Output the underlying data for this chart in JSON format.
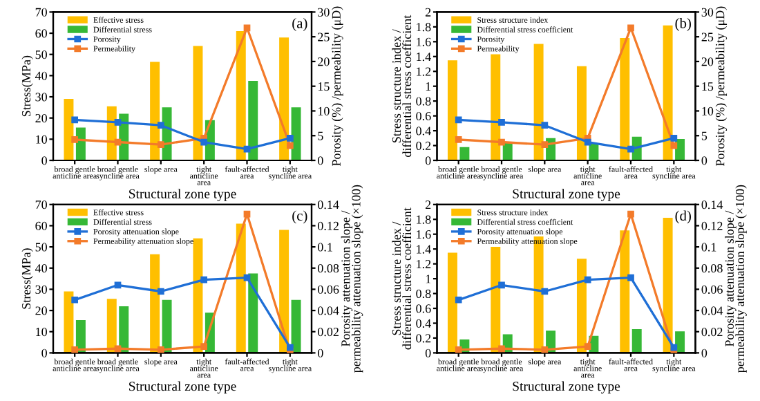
{
  "chart_data": [
    {
      "type": "bar",
      "categories": [
        "broad gentle\nanticline area",
        "broad gentle\nsyncline area",
        "slope area",
        "tight\nanticline\narea",
        "fault-affected\narea",
        "tight\nsyncline area"
      ],
      "xlabel": "Structural zone type",
      "ylabel": "Stress(MPa)",
      "y2label": "Porosity (%) /permeability (μD)",
      "annotations": [
        "(a)"
      ],
      "legend": "top left",
      "marker": "square",
      "ylim": [
        0,
        70
      ],
      "yticks": [
        0,
        10,
        20,
        30,
        40,
        50,
        60,
        70
      ],
      "y2lim": [
        0,
        30
      ],
      "y2ticks": [
        0,
        5,
        10,
        15,
        20,
        25,
        30
      ],
      "series": [
        {
          "name": "Effective stress",
          "color": "#ffbf00",
          "values": [
            29,
            25.5,
            46.5,
            54,
            61,
            58
          ]
        },
        {
          "name": "Differential stress",
          "color": "#36b836",
          "values": [
            15.5,
            22,
            25,
            19,
            37.5,
            25
          ]
        },
        {
          "name": "Porosity",
          "type": "line",
          "axis": "y2",
          "color": "#1f6fd6",
          "values": [
            8.2,
            7.7,
            7.1,
            3.7,
            2.3,
            4.5
          ]
        },
        {
          "name": "Permeability",
          "type": "line",
          "axis": "y2",
          "color": "#f37b2a",
          "values": [
            4.2,
            3.7,
            3.2,
            4.5,
            26.8,
            3.0
          ]
        }
      ]
    },
    {
      "type": "bar",
      "categories": [
        "broad gentle\nanticline area",
        "broad gentle\nsyncline area",
        "slope area",
        "tight\nanticline\narea",
        "fault-affected\narea",
        "tight\nsyncline area"
      ],
      "xlabel": "Structural zone type",
      "ylabel": "Stress structure index /\ndifferential stress coefficient",
      "y2label": "Porosity (%) /permeability (μD)",
      "annotations": [
        "(b)"
      ],
      "legend": "top left",
      "marker": "square",
      "ylim": [
        0,
        2
      ],
      "yticks": [
        0,
        0.2,
        0.4,
        0.6,
        0.8,
        1,
        1.2,
        1.4,
        1.6,
        1.8,
        2
      ],
      "y2lim": [
        0,
        30
      ],
      "y2ticks": [
        0,
        5,
        10,
        15,
        20,
        25,
        30
      ],
      "series": [
        {
          "name": "Stress structure index",
          "color": "#ffbf00",
          "values": [
            1.35,
            1.43,
            1.57,
            1.27,
            1.65,
            1.82
          ]
        },
        {
          "name": "Differential stress coefficient",
          "color": "#36b836",
          "values": [
            0.18,
            0.25,
            0.3,
            0.23,
            0.32,
            0.29
          ]
        },
        {
          "name": "Porosity",
          "type": "line",
          "axis": "y2",
          "color": "#1f6fd6",
          "values": [
            8.2,
            7.7,
            7.1,
            3.7,
            2.3,
            4.5
          ]
        },
        {
          "name": "Permeability",
          "type": "line",
          "axis": "y2",
          "color": "#f37b2a",
          "values": [
            4.2,
            3.7,
            3.2,
            4.5,
            26.8,
            3.0
          ]
        }
      ]
    },
    {
      "type": "bar",
      "categories": [
        "broad gentle\nanticline area",
        "broad gentle\nsyncline area",
        "slope area",
        "tight\nanticline\narea",
        "fault-affected\narea",
        "tight\nsyncline area"
      ],
      "xlabel": "Structural zone type",
      "ylabel": "Stress(MPa)",
      "y2label": "Porosity attenuation slope /\npermeability attenuation slope (×100)",
      "annotations": [
        "(c)"
      ],
      "legend": "top left",
      "marker": "square",
      "ylim": [
        0,
        70
      ],
      "yticks": [
        0,
        10,
        20,
        30,
        40,
        50,
        60,
        70
      ],
      "y2lim": [
        0,
        0.14
      ],
      "y2ticks": [
        0,
        0.02,
        0.04,
        0.06,
        0.08,
        0.1,
        0.12,
        0.14
      ],
      "series": [
        {
          "name": "Effective stress",
          "color": "#ffbf00",
          "values": [
            29,
            25.5,
            46.5,
            54,
            61,
            58
          ]
        },
        {
          "name": "Differential stress",
          "color": "#36b836",
          "values": [
            15.5,
            22,
            25,
            19,
            37.5,
            25
          ]
        },
        {
          "name": "Porosity attenuation slope",
          "type": "line",
          "axis": "y2",
          "color": "#1f6fd6",
          "values": [
            0.05,
            0.064,
            0.058,
            0.069,
            0.071,
            0.005
          ]
        },
        {
          "name": "Permeability attenuation slope",
          "type": "line",
          "axis": "y2",
          "color": "#f37b2a",
          "values": [
            0.003,
            0.004,
            0.003,
            0.006,
            0.131,
            0.001
          ]
        }
      ]
    },
    {
      "type": "bar",
      "categories": [
        "broad gentle\nanticline area",
        "broad gentle\nsyncline area",
        "slope area",
        "tight\nanticline\narea",
        "fault-affected\narea",
        "tight\nsyncline area"
      ],
      "xlabel": "Structural zone type",
      "ylabel": "Stress structure index /\ndifferential stress coefficient",
      "y2label": "Porosity attenuation slope /\npermeability attenuation slope (×100)",
      "annotations": [
        "(d)"
      ],
      "legend": "top left",
      "marker": "square",
      "ylim": [
        0,
        2
      ],
      "yticks": [
        0,
        0.2,
        0.4,
        0.6,
        0.8,
        1,
        1.2,
        1.4,
        1.6,
        1.8,
        2
      ],
      "y2lim": [
        0,
        0.14
      ],
      "y2ticks": [
        0,
        0.02,
        0.04,
        0.06,
        0.08,
        0.1,
        0.12,
        0.14
      ],
      "series": [
        {
          "name": "Stress structure index",
          "color": "#ffbf00",
          "values": [
            1.35,
            1.43,
            1.57,
            1.27,
            1.65,
            1.82
          ]
        },
        {
          "name": "Differential stress coefficient",
          "color": "#36b836",
          "values": [
            0.18,
            0.25,
            0.3,
            0.23,
            0.32,
            0.29
          ]
        },
        {
          "name": "Porosity attenuation slope",
          "type": "line",
          "axis": "y2",
          "color": "#1f6fd6",
          "values": [
            0.05,
            0.064,
            0.058,
            0.069,
            0.071,
            0.005
          ]
        },
        {
          "name": "Permeability attenuation slope",
          "type": "line",
          "axis": "y2",
          "color": "#f37b2a",
          "values": [
            0.003,
            0.004,
            0.003,
            0.006,
            0.131,
            0.001
          ]
        }
      ]
    }
  ]
}
